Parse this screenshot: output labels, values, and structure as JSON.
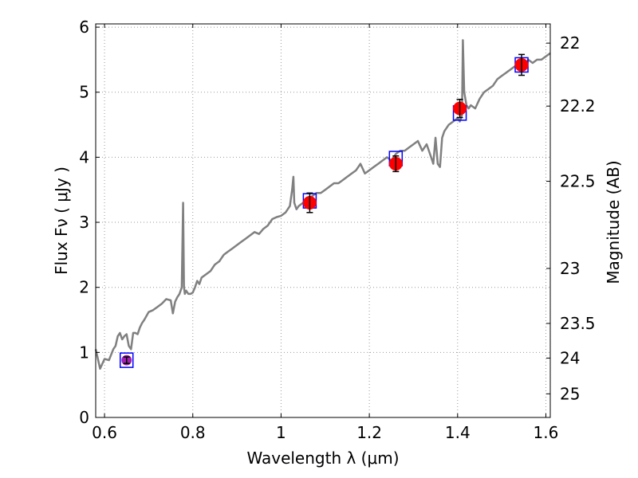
{
  "chart_data": {
    "type": "scatter",
    "title": "",
    "xlabel": "Wavelength  λ (μm)",
    "ylabel": "Flux  Fν  ( μJy )",
    "y2label": "Magnitude (AB)",
    "xlim": [
      0.58,
      1.61
    ],
    "ylim": [
      0,
      6.05
    ],
    "grid": true,
    "x_ticks": [
      0.6,
      0.8,
      1.0,
      1.2,
      1.4,
      1.6
    ],
    "x_tick_labels": [
      "0.6",
      "0.8",
      "1",
      "1.2",
      "1.4",
      "1.6"
    ],
    "y_ticks": [
      0,
      1,
      2,
      3,
      4,
      5,
      6
    ],
    "y_tick_labels": [
      "0",
      "1",
      "2",
      "3",
      "4",
      "5",
      "6"
    ],
    "y2_ticks": [
      {
        "label": "22",
        "mag": 22.0
      },
      {
        "label": "22.2",
        "mag": 22.2
      },
      {
        "label": "22.5",
        "mag": 22.5
      },
      {
        "label": "23",
        "mag": 23.0
      },
      {
        "label": "23.5",
        "mag": 23.5
      },
      {
        "label": "24",
        "mag": 24.0
      },
      {
        "label": "25",
        "mag": 25.0
      }
    ],
    "colors": {
      "spectrum": "#808080",
      "photometry": "#ff0000",
      "photometry_first": "#a020b0",
      "model": "#0000ff",
      "errorbar": "#000000",
      "grid": "#999999"
    },
    "series": [
      {
        "name": "spectrum",
        "kind": "line",
        "x": [
          0.58,
          0.59,
          0.6,
          0.61,
          0.62,
          0.625,
          0.63,
          0.635,
          0.64,
          0.645,
          0.65,
          0.655,
          0.66,
          0.665,
          0.67,
          0.675,
          0.68,
          0.685,
          0.69,
          0.7,
          0.71,
          0.72,
          0.73,
          0.74,
          0.75,
          0.755,
          0.76,
          0.765,
          0.77,
          0.775,
          0.778,
          0.78,
          0.782,
          0.785,
          0.79,
          0.795,
          0.8,
          0.805,
          0.81,
          0.815,
          0.82,
          0.83,
          0.84,
          0.85,
          0.86,
          0.87,
          0.88,
          0.89,
          0.9,
          0.91,
          0.92,
          0.93,
          0.94,
          0.95,
          0.96,
          0.97,
          0.98,
          0.99,
          1.0,
          1.01,
          1.02,
          1.025,
          1.028,
          1.03,
          1.035,
          1.04,
          1.05,
          1.06,
          1.07,
          1.08,
          1.09,
          1.1,
          1.11,
          1.12,
          1.13,
          1.14,
          1.15,
          1.16,
          1.17,
          1.18,
          1.19,
          1.2,
          1.21,
          1.22,
          1.23,
          1.24,
          1.25,
          1.26,
          1.27,
          1.28,
          1.29,
          1.3,
          1.31,
          1.32,
          1.33,
          1.34,
          1.345,
          1.35,
          1.355,
          1.36,
          1.365,
          1.37,
          1.375,
          1.38,
          1.39,
          1.4,
          1.405,
          1.41,
          1.412,
          1.415,
          1.42,
          1.425,
          1.43,
          1.44,
          1.45,
          1.46,
          1.47,
          1.48,
          1.49,
          1.5,
          1.51,
          1.52,
          1.53,
          1.54,
          1.55,
          1.56,
          1.57,
          1.58,
          1.59,
          1.6,
          1.61
        ],
        "y": [
          1.05,
          0.75,
          0.9,
          0.88,
          1.05,
          1.1,
          1.25,
          1.3,
          1.2,
          1.25,
          1.28,
          1.1,
          1.05,
          1.3,
          1.3,
          1.28,
          1.38,
          1.45,
          1.5,
          1.62,
          1.65,
          1.7,
          1.75,
          1.82,
          1.8,
          1.6,
          1.78,
          1.85,
          1.9,
          2.0,
          3.3,
          2.0,
          1.9,
          1.95,
          1.9,
          1.9,
          1.92,
          2.0,
          2.1,
          2.05,
          2.15,
          2.2,
          2.25,
          2.35,
          2.4,
          2.5,
          2.55,
          2.6,
          2.65,
          2.7,
          2.75,
          2.8,
          2.85,
          2.82,
          2.9,
          2.95,
          3.05,
          3.08,
          3.1,
          3.15,
          3.25,
          3.5,
          3.7,
          3.3,
          3.2,
          3.25,
          3.3,
          3.35,
          3.4,
          3.45,
          3.45,
          3.5,
          3.55,
          3.6,
          3.6,
          3.65,
          3.7,
          3.75,
          3.8,
          3.9,
          3.75,
          3.8,
          3.85,
          3.9,
          3.95,
          4.0,
          3.95,
          4.05,
          4.1,
          4.1,
          4.15,
          4.2,
          4.25,
          4.1,
          4.2,
          4.0,
          3.9,
          4.3,
          3.9,
          3.85,
          4.3,
          4.4,
          4.45,
          4.5,
          4.55,
          4.6,
          4.55,
          4.65,
          5.8,
          5.0,
          4.8,
          4.75,
          4.8,
          4.75,
          4.9,
          5.0,
          5.05,
          5.1,
          5.2,
          5.25,
          5.3,
          5.35,
          5.4,
          5.45,
          5.35,
          5.5,
          5.45,
          5.5,
          5.5,
          5.55,
          5.6
        ]
      },
      {
        "name": "photometry",
        "kind": "points",
        "x": [
          0.65,
          1.065,
          1.26,
          1.405,
          1.545
        ],
        "y": [
          0.88,
          3.3,
          3.9,
          4.75,
          5.42
        ],
        "yerr": [
          0.05,
          0.15,
          0.12,
          0.14,
          0.16
        ]
      },
      {
        "name": "model",
        "kind": "squares",
        "x": [
          0.65,
          1.065,
          1.26,
          1.405,
          1.545
        ],
        "y": [
          0.88,
          3.33,
          3.98,
          4.68,
          5.42
        ]
      }
    ]
  }
}
